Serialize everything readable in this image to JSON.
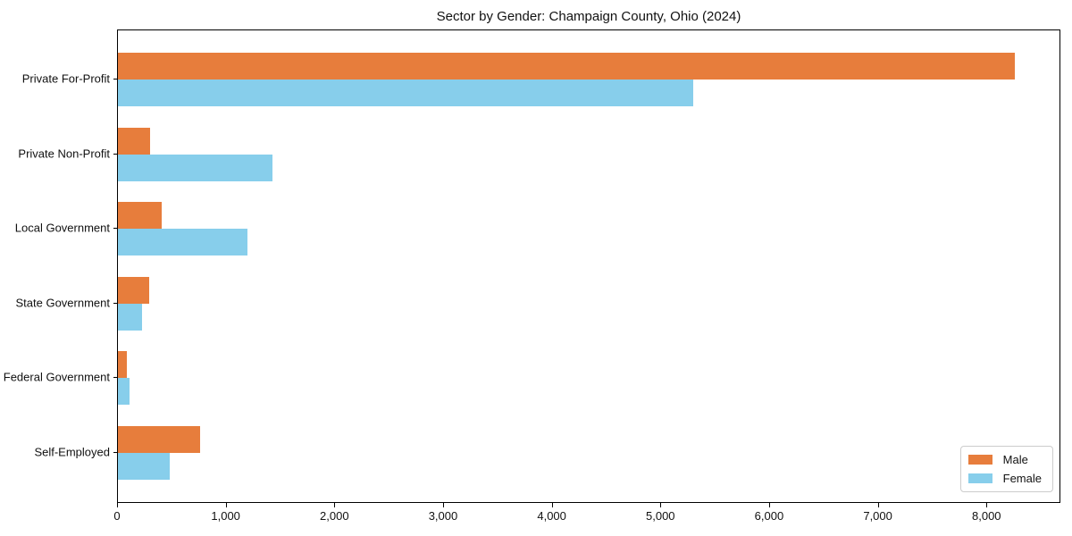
{
  "title": "Sector by Gender: Champaign County, Ohio (2024)",
  "chart_data": {
    "type": "bar",
    "orientation": "horizontal",
    "title": "Sector by Gender: Champaign County, Ohio (2024)",
    "xlabel": "",
    "ylabel": "",
    "categories": [
      "Private For-Profit",
      "Private Non-Profit",
      "Local Government",
      "State Government",
      "Federal Government",
      "Self-Employed"
    ],
    "series": [
      {
        "name": "Male",
        "color": "#E77D3C",
        "values": [
          8250,
          300,
          400,
          290,
          80,
          760
        ]
      },
      {
        "name": "Female",
        "color": "#87CEEB",
        "values": [
          5290,
          1420,
          1190,
          220,
          110,
          480
        ]
      }
    ],
    "xlim": [
      0,
      8680
    ],
    "x_ticks": [
      0,
      1000,
      2000,
      3000,
      4000,
      5000,
      6000,
      7000,
      8000
    ],
    "x_tick_labels": [
      "0",
      "1,000",
      "2,000",
      "3,000",
      "4,000",
      "5,000",
      "6,000",
      "7,000",
      "8,000"
    ],
    "grid": false,
    "legend_position": "lower right"
  },
  "legend": {
    "items": [
      {
        "label": "Male",
        "color": "#E77D3C"
      },
      {
        "label": "Female",
        "color": "#87CEEB"
      }
    ]
  }
}
